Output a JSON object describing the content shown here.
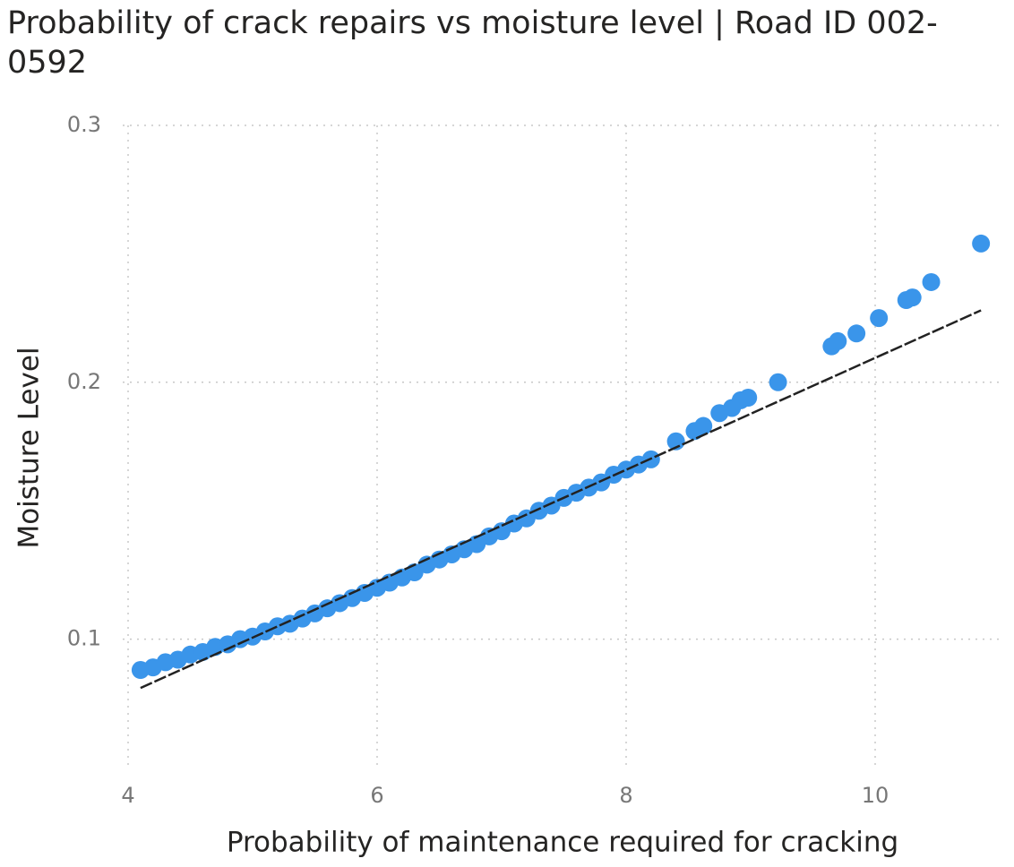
{
  "chart_data": {
    "type": "scatter",
    "title": "Probability of crack repairs vs moisture level | Road ID 002-0592",
    "x_label": "Probability of maintenance required for cracking",
    "y_label": "Moisture Level",
    "xlim": [
      4,
      11
    ],
    "ylim": [
      0.05,
      0.3
    ],
    "xticks": [
      4,
      6,
      8,
      10
    ],
    "yticks": [
      0.1,
      0.2,
      0.3
    ],
    "grid": true,
    "series": [
      {
        "color": "#3a95ea",
        "x": [
          4.1,
          4.2,
          4.3,
          4.4,
          4.5,
          4.6,
          4.7,
          4.8,
          4.9,
          5.0,
          5.1,
          5.2,
          5.3,
          5.4,
          5.5,
          5.6,
          5.7,
          5.8,
          5.9,
          6.0,
          6.1,
          6.2,
          6.3,
          6.4,
          6.5,
          6.6,
          6.7,
          6.8,
          6.9,
          7.0,
          7.1,
          7.2,
          7.3,
          7.4,
          7.5,
          7.6,
          7.7,
          7.8,
          7.9,
          8.0,
          8.1,
          8.2,
          8.4,
          8.55,
          8.62,
          8.75,
          8.85,
          8.92,
          8.98,
          9.22,
          9.65,
          9.7,
          9.85,
          10.03,
          10.25,
          10.3,
          10.45,
          10.85
        ],
        "values": [
          0.088,
          0.089,
          0.091,
          0.092,
          0.094,
          0.095,
          0.097,
          0.098,
          0.1,
          0.101,
          0.103,
          0.105,
          0.106,
          0.108,
          0.11,
          0.112,
          0.114,
          0.116,
          0.118,
          0.12,
          0.122,
          0.124,
          0.126,
          0.129,
          0.131,
          0.133,
          0.135,
          0.137,
          0.14,
          0.142,
          0.145,
          0.147,
          0.15,
          0.152,
          0.155,
          0.157,
          0.159,
          0.161,
          0.164,
          0.166,
          0.168,
          0.17,
          0.177,
          0.181,
          0.183,
          0.188,
          0.19,
          0.193,
          0.194,
          0.2,
          0.214,
          0.216,
          0.219,
          0.225,
          0.232,
          0.233,
          0.239,
          0.254
        ]
      }
    ],
    "trend_line": {
      "color": "#222222",
      "dashed": true,
      "x": [
        4.1,
        10.85
      ],
      "y": [
        0.081,
        0.228
      ]
    }
  }
}
